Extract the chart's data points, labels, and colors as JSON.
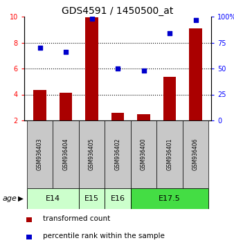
{
  "title": "GDS4591 / 1450500_at",
  "samples": [
    "GSM936403",
    "GSM936404",
    "GSM936405",
    "GSM936402",
    "GSM936400",
    "GSM936401",
    "GSM936406"
  ],
  "transformed_count": [
    4.35,
    4.15,
    9.95,
    2.6,
    2.5,
    5.35,
    9.1
  ],
  "percentile_rank": [
    70,
    66,
    98,
    50,
    48,
    84,
    97
  ],
  "ylim_left": [
    2,
    10
  ],
  "ylim_right": [
    0,
    100
  ],
  "yticks_left": [
    2,
    4,
    6,
    8,
    10
  ],
  "yticks_right": [
    0,
    25,
    50,
    75,
    100
  ],
  "bar_color": "#aa0000",
  "dot_color": "#0000cc",
  "bar_width": 0.5,
  "sample_bg_color": "#c8c8c8",
  "e14_color": "#ccffcc",
  "e175_color": "#44dd44",
  "legend_bar_label": "transformed count",
  "legend_dot_label": "percentile rank within the sample",
  "age_label": "age",
  "title_fontsize": 10,
  "tick_fontsize": 7,
  "sample_fontsize": 5.5,
  "age_fontsize": 8,
  "legend_fontsize": 7.5,
  "group_spans": [
    [
      0,
      1,
      "E14",
      "#ccffcc"
    ],
    [
      2,
      2,
      "E15",
      "#ccffcc"
    ],
    [
      3,
      3,
      "E16",
      "#ccffcc"
    ],
    [
      4,
      6,
      "E17.5",
      "#44dd44"
    ]
  ]
}
